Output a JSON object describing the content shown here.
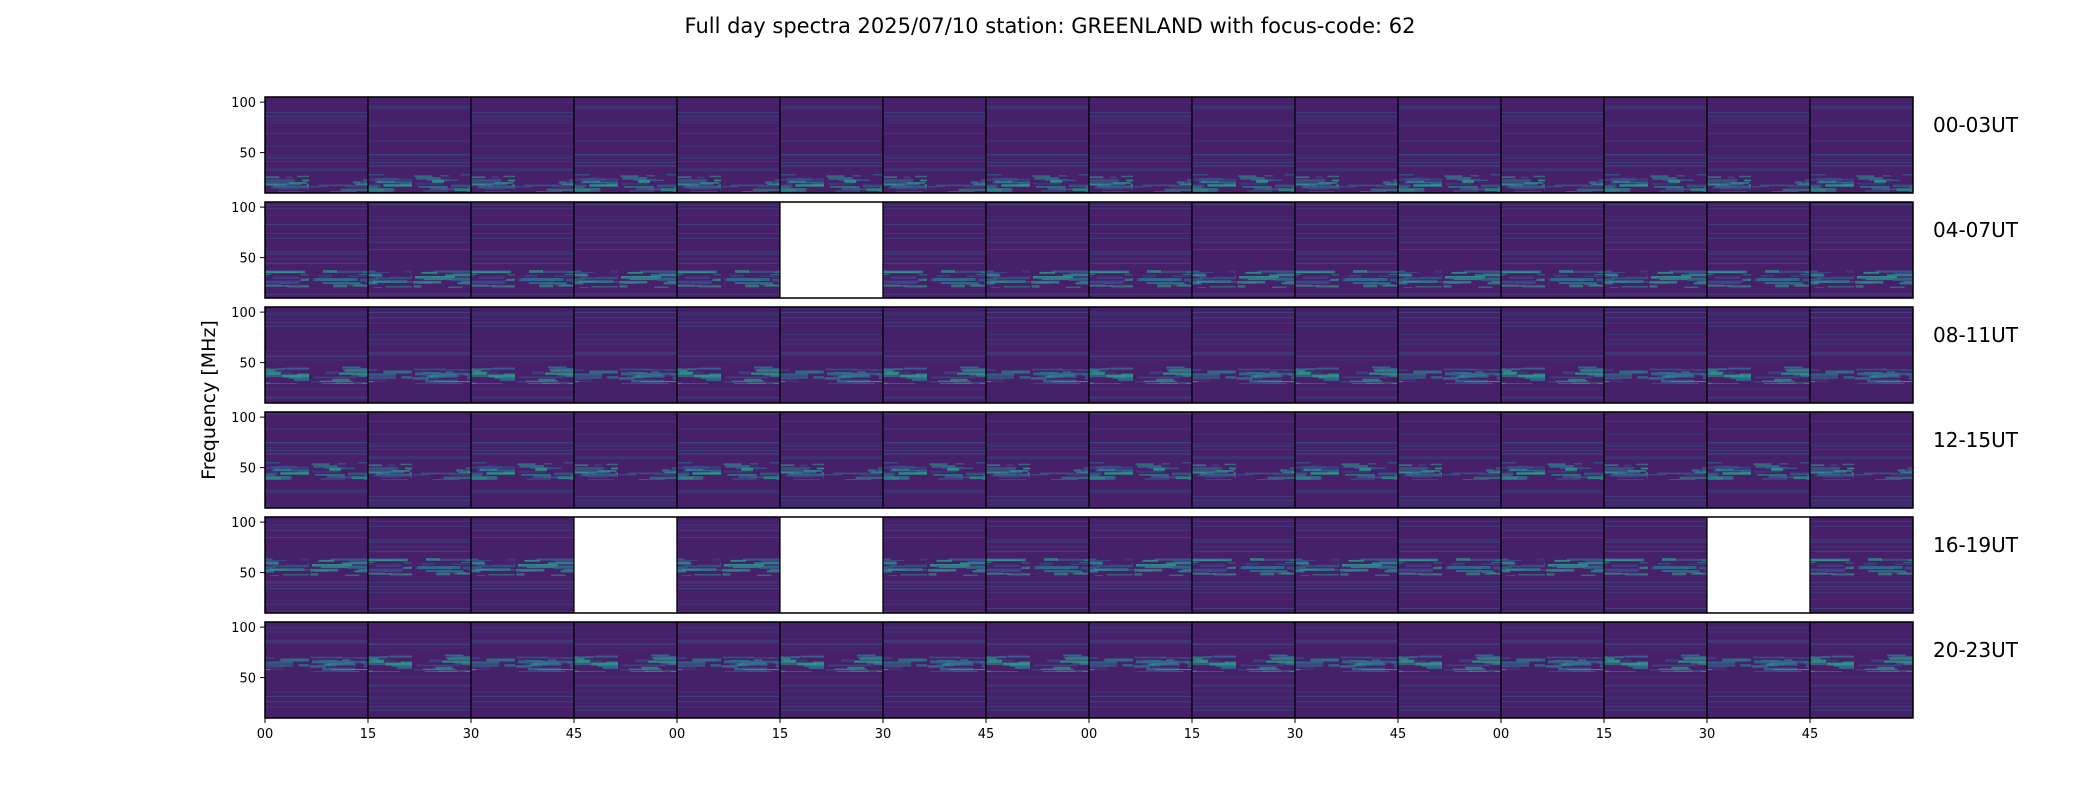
{
  "chart_data": {
    "type": "heatmap",
    "title": "Full day spectra 2025/07/10 station: GREENLAND with focus-code: 62",
    "ylabel": "Frequency [MHz]",
    "y_ticks": [
      "50",
      "100"
    ],
    "ylim": [
      10,
      105
    ],
    "x_tick_labels": [
      "00",
      "15",
      "30",
      "45",
      "00",
      "15",
      "30",
      "45",
      "00",
      "15",
      "30",
      "45",
      "00",
      "15",
      "30",
      "45"
    ],
    "panels_per_row": 16,
    "panel_minutes": 15,
    "colormap": "viridis",
    "background_color": "#46216a",
    "missing_color": "#ffffff",
    "rows": [
      {
        "label": "00-03UT",
        "missing": []
      },
      {
        "label": "04-07UT",
        "missing": [
          5
        ]
      },
      {
        "label": "08-11UT",
        "missing": []
      },
      {
        "label": "12-15UT",
        "missing": []
      },
      {
        "label": "16-19UT",
        "missing": [
          3,
          5,
          14
        ]
      },
      {
        "label": "20-23UT",
        "missing": []
      }
    ]
  }
}
